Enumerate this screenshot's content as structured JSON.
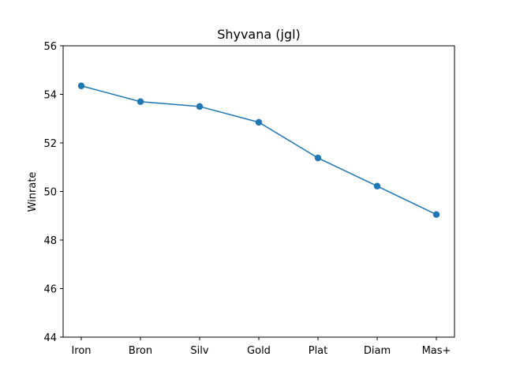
{
  "chart_data": {
    "type": "line",
    "title": "Shyvana (jgl)",
    "xlabel": "",
    "ylabel": "Winrate",
    "categories": [
      "Iron",
      "Bron",
      "Silv",
      "Gold",
      "Plat",
      "Diam",
      "Mas+"
    ],
    "series": [
      {
        "values": [
          54.35,
          53.7,
          53.5,
          52.85,
          51.38,
          50.22,
          49.05
        ],
        "color": "#1f77b4",
        "marker": "circle"
      }
    ],
    "ylim": [
      44,
      56
    ],
    "yticks": [
      "44",
      "46",
      "48",
      "50",
      "52",
      "54",
      "56"
    ],
    "grid": false,
    "legend": "none"
  }
}
